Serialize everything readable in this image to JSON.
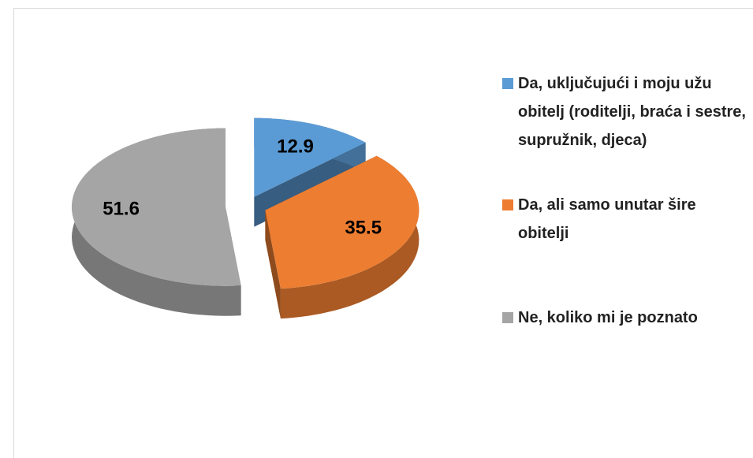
{
  "chart_data": {
    "type": "pie",
    "categories": [
      "Da, uključujući i moju užu obitelj (roditelji, braća i sestre, supružnik, djeca)",
      "Da, ali samo unutar šire obitelji",
      "Ne, koliko mi je poznato"
    ],
    "values": [
      12.9,
      35.5,
      51.6
    ],
    "colors": [
      "#5b9bd5",
      "#ed7d31",
      "#a5a5a5"
    ],
    "legend": "right"
  }
}
